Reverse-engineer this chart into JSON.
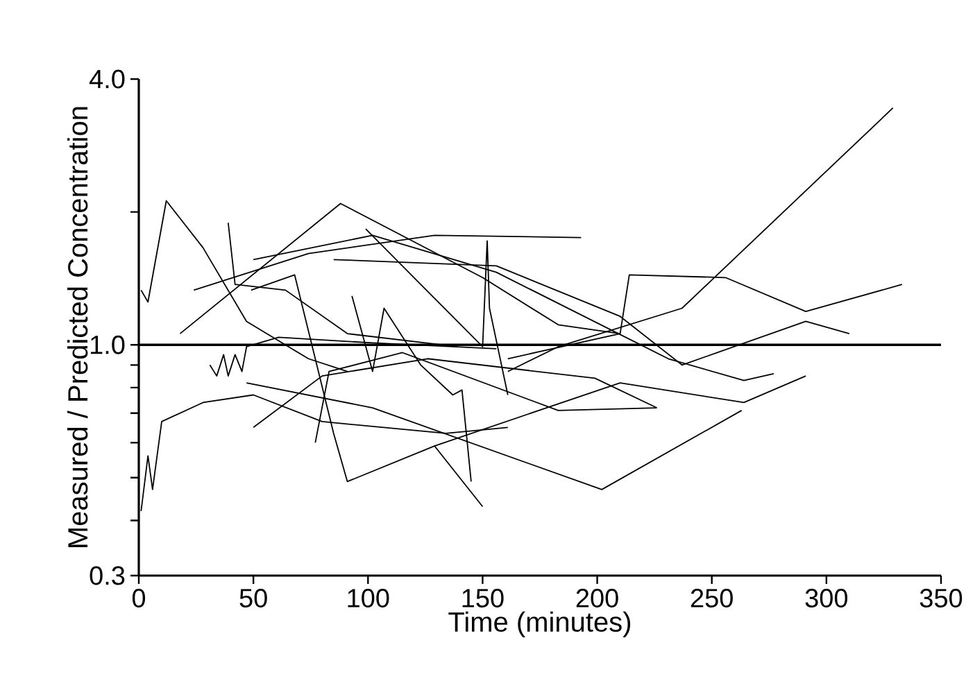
{
  "chart_data": {
    "type": "line",
    "xlabel": "Time (minutes)",
    "ylabel": "Measured / Predicted Concentration",
    "xlim": [
      0,
      350
    ],
    "xticks": [
      0,
      50,
      100,
      150,
      200,
      250,
      300,
      350
    ],
    "ylim": [
      0.3,
      4.0
    ],
    "yticks": [
      {
        "value": 0.3,
        "label": "0.3"
      },
      {
        "value": 0.4,
        "label": null
      },
      {
        "value": 0.5,
        "label": null
      },
      {
        "value": 0.6,
        "label": null
      },
      {
        "value": 0.7,
        "label": null
      },
      {
        "value": 0.8,
        "label": null
      },
      {
        "value": 0.9,
        "label": null
      },
      {
        "value": 1,
        "label": "1.0"
      },
      {
        "value": 2,
        "label": null
      },
      {
        "value": 4,
        "label": "4.0"
      }
    ],
    "log": "y",
    "grid": false,
    "marker": "none",
    "line_style": "solid",
    "ref_lines": [
      {
        "axis": "y",
        "value": 1,
        "color": "#000000"
      }
    ],
    "series": [
      {
        "color": "#000000",
        "x": [
          1,
          4,
          6,
          10,
          28,
          50,
          80,
          134,
          161
        ],
        "values": [
          0.42,
          0.56,
          0.47,
          0.67,
          0.74,
          0.77,
          0.67,
          0.63,
          0.65
        ]
      },
      {
        "color": "#000000",
        "x": [
          1,
          4,
          12,
          28,
          47,
          74,
          91
        ],
        "values": [
          1.33,
          1.25,
          2.12,
          1.66,
          1.13,
          0.93,
          0.87
        ]
      },
      {
        "color": "#000000",
        "x": [
          161,
          183,
          237,
          329
        ],
        "values": [
          0.87,
          0.99,
          1.21,
          3.44
        ]
      },
      {
        "color": "#000000",
        "x": [
          161,
          210,
          214,
          256,
          291,
          333
        ],
        "values": [
          0.93,
          1.06,
          1.44,
          1.42,
          1.19,
          1.37
        ]
      },
      {
        "color": "#000000",
        "x": [
          50,
          102,
          156,
          231,
          264,
          277
        ],
        "values": [
          1.56,
          1.77,
          1.46,
          0.93,
          0.83,
          0.86
        ]
      },
      {
        "color": "#000000",
        "x": [
          18,
          88,
          150,
          183,
          210
        ],
        "values": [
          1.06,
          2.09,
          1.42,
          1.11,
          1.06
        ]
      },
      {
        "color": "#000000",
        "x": [
          24,
          74,
          129,
          193
        ],
        "values": [
          1.33,
          1.61,
          1.77,
          1.75
        ]
      },
      {
        "color": "#000000",
        "x": [
          49,
          68,
          85,
          91,
          129,
          150
        ],
        "values": [
          1.33,
          1.44,
          0.63,
          0.49,
          0.59,
          0.43
        ]
      },
      {
        "color": "#000000",
        "x": [
          50,
          80,
          126,
          199,
          226
        ],
        "values": [
          0.65,
          0.85,
          0.93,
          0.84,
          0.72
        ]
      },
      {
        "color": "#000000",
        "x": [
          77,
          83,
          115,
          183,
          226
        ],
        "values": [
          0.6,
          0.87,
          0.96,
          0.71,
          0.72
        ]
      },
      {
        "color": "#000000",
        "x": [
          47,
          102,
          202,
          263
        ],
        "values": [
          0.82,
          0.72,
          0.47,
          0.71
        ]
      },
      {
        "color": "#000000",
        "x": [
          129,
          210,
          264,
          291
        ],
        "values": [
          0.59,
          0.82,
          0.74,
          0.85
        ]
      },
      {
        "color": "#000000",
        "x": [
          39,
          42,
          64,
          91,
          139
        ],
        "values": [
          1.89,
          1.37,
          1.33,
          1.06,
          0.99
        ]
      },
      {
        "color": "#000000",
        "x": [
          85,
          156,
          210,
          237,
          291,
          310
        ],
        "values": [
          1.56,
          1.51,
          1.16,
          0.9,
          1.13,
          1.06
        ]
      },
      {
        "color": "#000000",
        "x": [
          99,
          123,
          150,
          152,
          153,
          161
        ],
        "values": [
          1.83,
          1.37,
          0.99,
          1.72,
          1.21,
          0.77
        ]
      },
      {
        "color": "#000000",
        "x": [
          31,
          34,
          37,
          39,
          42,
          45,
          47,
          61,
          102,
          156
        ],
        "values": [
          0.9,
          0.85,
          0.95,
          0.85,
          0.95,
          0.87,
          0.99,
          1.04,
          1.01,
          0.98
        ]
      },
      {
        "color": "#000000",
        "x": [
          93,
          102,
          107,
          123,
          137,
          141,
          145
        ],
        "values": [
          1.29,
          0.87,
          1.21,
          0.9,
          0.77,
          0.79,
          0.49
        ]
      }
    ]
  }
}
